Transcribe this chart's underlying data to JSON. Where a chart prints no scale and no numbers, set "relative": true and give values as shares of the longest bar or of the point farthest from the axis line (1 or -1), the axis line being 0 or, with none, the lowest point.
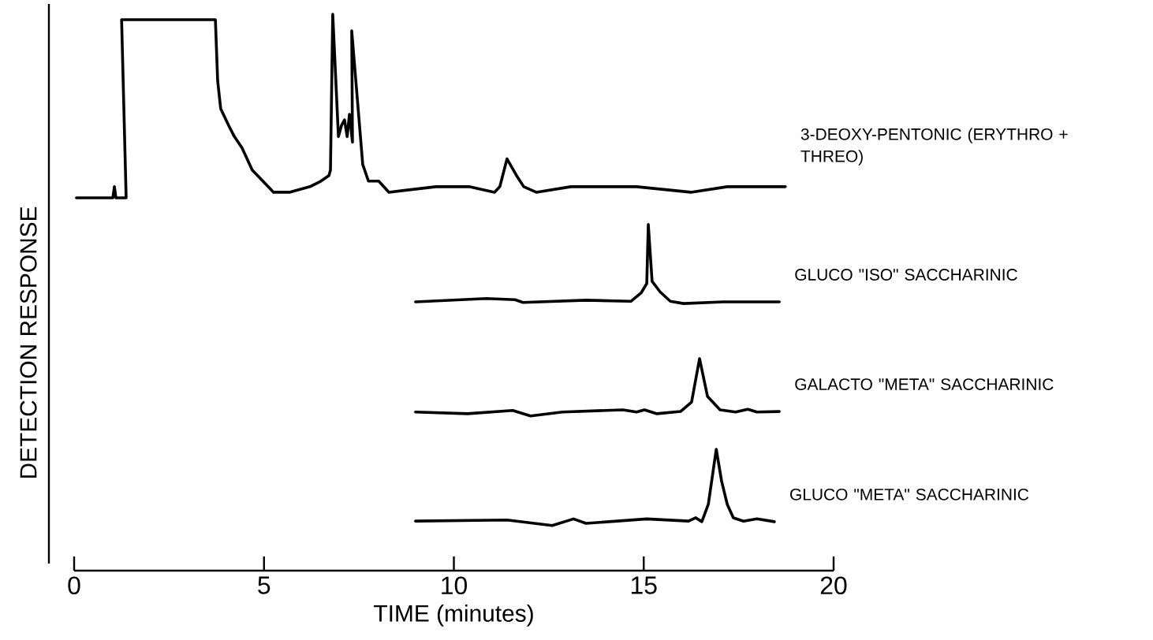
{
  "chart_data": {
    "type": "line",
    "relative": true,
    "xlabel": "TIME (minutes)",
    "ylabel": "DETECTION RESPONSE",
    "xlim": [
      0,
      20
    ],
    "xticks": [
      0,
      5,
      10,
      15,
      20
    ],
    "marker": "none",
    "line_style": "solid",
    "series": [
      {
        "name": "3-DEOXY-PENTONIC (ERYTHRO + THREO)",
        "color": "#000000",
        "x": [
          0.06,
          1.02,
          1.06,
          1.1,
          1.37,
          1.25,
          3.66,
          3.72,
          3.78,
          3.86,
          4.07,
          4.22,
          4.42,
          4.69,
          5.11,
          5.25,
          5.67,
          6.21,
          6.5,
          6.71,
          6.75,
          6.81,
          6.96,
          7.04,
          7.12,
          7.19,
          7.25,
          7.33,
          7.31,
          7.6,
          7.75,
          8.02,
          8.29,
          9.53,
          10.4,
          11.07,
          11.21,
          11.4,
          11.65,
          11.84,
          12.17,
          13.08,
          14.81,
          16.24,
          17.2,
          18.73
        ],
        "values": [
          0.67,
          0.67,
          0.69,
          0.67,
          0.67,
          0.99,
          0.99,
          0.99,
          0.88,
          0.83,
          0.8,
          0.78,
          0.76,
          0.72,
          0.69,
          0.68,
          0.68,
          0.69,
          0.7,
          0.71,
          0.72,
          1.0,
          0.78,
          0.8,
          0.81,
          0.78,
          0.82,
          0.77,
          0.97,
          0.73,
          0.7,
          0.7,
          0.68,
          0.69,
          0.69,
          0.68,
          0.69,
          0.74,
          0.71,
          0.69,
          0.68,
          0.69,
          0.69,
          0.68,
          0.69,
          0.69
        ]
      },
      {
        "name": "GLUCO \"ISO\" SACCHARINIC",
        "color": "#000000",
        "x": [
          8.99,
          10.86,
          11.61,
          11.82,
          13.48,
          14.66,
          14.93,
          15.08,
          15.12,
          15.22,
          15.43,
          15.7,
          16.05,
          17.09,
          18.57
        ],
        "values": [
          0.483,
          0.489,
          0.487,
          0.482,
          0.486,
          0.484,
          0.499,
          0.516,
          0.622,
          0.52,
          0.501,
          0.484,
          0.48,
          0.483,
          0.483
        ]
      },
      {
        "name": "GALACTO \"META\" SACCHARINIC",
        "color": "#000000",
        "x": [
          8.99,
          10.36,
          11.55,
          12.02,
          12.86,
          14.45,
          14.81,
          15.02,
          15.35,
          15.97,
          16.26,
          16.47,
          16.68,
          17.01,
          17.42,
          17.74,
          17.98,
          18.57
        ],
        "values": [
          0.285,
          0.282,
          0.288,
          0.278,
          0.285,
          0.289,
          0.285,
          0.289,
          0.282,
          0.286,
          0.303,
          0.381,
          0.313,
          0.289,
          0.285,
          0.29,
          0.285,
          0.286
        ]
      },
      {
        "name": "GLUCO \"META\" SACCHARINIC",
        "color": "#000000",
        "x": [
          8.99,
          11.4,
          12.59,
          13.15,
          13.48,
          15.08,
          16.18,
          16.37,
          16.53,
          16.7,
          16.91,
          17.05,
          17.2,
          17.36,
          17.63,
          17.98,
          18.44
        ],
        "values": [
          0.089,
          0.091,
          0.081,
          0.093,
          0.085,
          0.093,
          0.089,
          0.095,
          0.088,
          0.119,
          0.218,
          0.161,
          0.119,
          0.095,
          0.089,
          0.093,
          0.088
        ]
      }
    ]
  }
}
